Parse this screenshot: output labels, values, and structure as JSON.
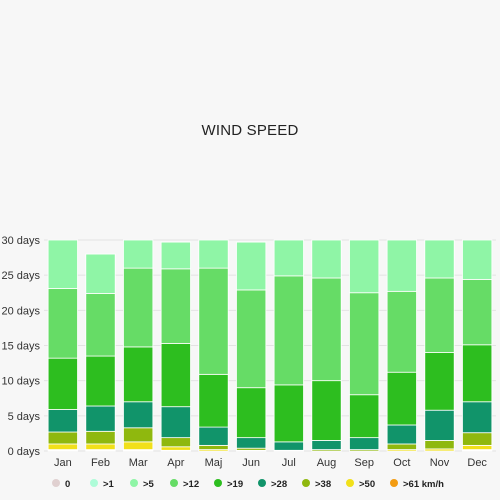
{
  "chart_data": {
    "type": "bar",
    "stacked": true,
    "title": "WIND SPEED",
    "xlabel": "",
    "ylabel": "",
    "ylim": [
      0,
      30
    ],
    "y_ticks": [
      "0 days",
      "5 days",
      "10 days",
      "15 days",
      "20 days",
      "25 days",
      "30 days"
    ],
    "y_tick_values": [
      0,
      5,
      10,
      15,
      20,
      25,
      30
    ],
    "grid": true,
    "legend_position": "bottom",
    "categories": [
      "Jan",
      "Feb",
      "Mar",
      "Apr",
      "Maj",
      "Jun",
      "Jul",
      "Aug",
      "Sep",
      "Oct",
      "Nov",
      "Dec"
    ],
    "series": [
      {
        "name": "0",
        "color": "#e0d0d0",
        "values": [
          0.1,
          0.1,
          0.1,
          0.1,
          0.0,
          0.0,
          0.0,
          0.0,
          0.0,
          0.0,
          0.0,
          0.1
        ]
      },
      {
        "name": "61 km/h",
        "color": "#f39c12",
        "values": [
          0.1,
          0.1,
          0.1,
          0.0,
          0.0,
          0.0,
          0.0,
          0.0,
          0.0,
          0.0,
          0.0,
          0.1
        ]
      },
      {
        "name": ">50",
        "color": "#f1e01a",
        "values": [
          0.8,
          0.8,
          1.1,
          0.5,
          0.2,
          0.1,
          0.0,
          0.0,
          0.0,
          0.2,
          0.3,
          0.6
        ]
      },
      {
        "name": ">38",
        "color": "#8fb80e",
        "values": [
          1.7,
          1.8,
          2.0,
          1.3,
          0.6,
          0.3,
          0.1,
          0.2,
          0.2,
          0.8,
          1.2,
          1.8
        ]
      },
      {
        "name": ">28",
        "color": "#11946a",
        "values": [
          3.2,
          3.6,
          3.7,
          4.4,
          2.6,
          1.5,
          1.2,
          1.3,
          1.7,
          2.7,
          4.3,
          4.4
        ]
      },
      {
        "name": ">19",
        "color": "#2dbe1f",
        "values": [
          7.3,
          7.1,
          7.8,
          9.0,
          7.5,
          7.1,
          8.1,
          8.5,
          6.1,
          7.5,
          8.2,
          8.1
        ]
      },
      {
        "name": ">12",
        "color": "#66dc66",
        "values": [
          9.9,
          8.9,
          11.2,
          10.6,
          15.1,
          13.9,
          15.5,
          14.6,
          14.5,
          11.5,
          10.6,
          9.3
        ]
      },
      {
        "name": ">5",
        "color": "#8ff5a6",
        "values": [
          6.9,
          5.6,
          4.0,
          3.8,
          4.0,
          6.8,
          5.1,
          5.4,
          7.5,
          7.3,
          5.4,
          5.6
        ]
      },
      {
        "name": ">1",
        "color": "#aefcd8",
        "values": [
          0.0,
          0.0,
          0.0,
          0.0,
          0.0,
          0.0,
          0.0,
          0.0,
          0.0,
          0.0,
          0.0,
          0.0
        ]
      }
    ],
    "legend": [
      {
        "label": "0",
        "color": "#e0d0d0"
      },
      {
        "label": ">1",
        "color": "#aefcd8"
      },
      {
        "label": ">5",
        "color": "#8ff5a6"
      },
      {
        "label": ">12",
        "color": "#66dc66"
      },
      {
        "label": ">19",
        "color": "#2dbe1f"
      },
      {
        "label": ">28",
        "color": "#11946a"
      },
      {
        "label": ">38",
        "color": "#8fb80e"
      },
      {
        "label": ">50",
        "color": "#f1e01a"
      },
      {
        "label": ">61 km/h",
        "color": "#f39c12"
      }
    ]
  }
}
